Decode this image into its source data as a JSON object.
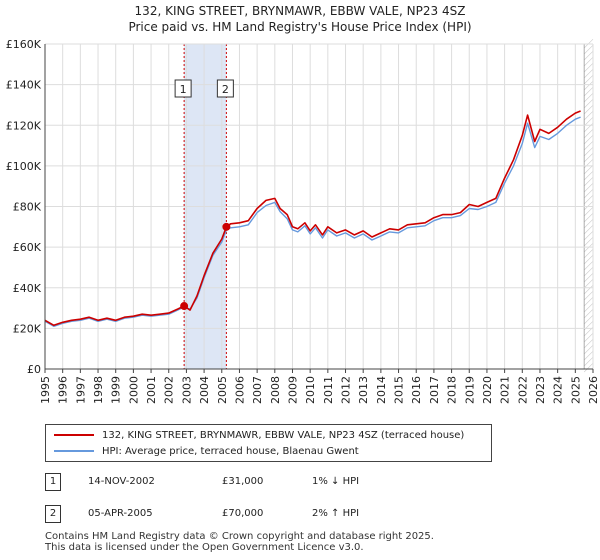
{
  "title_line1": "132, KING STREET, BRYNMAWR, EBBW VALE, NP23 4SZ",
  "title_line2": "Price paid vs. HM Land Registry's House Price Index (HPI)",
  "chart_data": {
    "type": "line",
    "y_tick_labels": [
      "£0",
      "£20K",
      "£40K",
      "£60K",
      "£80K",
      "£100K",
      "£120K",
      "£140K",
      "£160K"
    ],
    "y_tick_values": [
      0,
      20000,
      40000,
      60000,
      80000,
      100000,
      120000,
      140000,
      160000
    ],
    "ylim": [
      0,
      160000
    ],
    "xlim": [
      1995,
      2026
    ],
    "x_tick_labels": [
      "1995",
      "1996",
      "1997",
      "1998",
      "1999",
      "2000",
      "2001",
      "2002",
      "2003",
      "2004",
      "2005",
      "2006",
      "2007",
      "2008",
      "2009",
      "2010",
      "2011",
      "2012",
      "2013",
      "2014",
      "2015",
      "2016",
      "2017",
      "2018",
      "2019",
      "2020",
      "2021",
      "2022",
      "2023",
      "2024",
      "2025",
      "2026"
    ],
    "shaded_range": [
      2002.87,
      2005.26
    ],
    "forecast_start": 2025.5,
    "series": [
      {
        "name": "132, KING STREET, BRYNMAWR, EBBW VALE, NP23 4SZ (terraced house)",
        "color": "#cc0000",
        "x": [
          1995.0,
          1995.5,
          1996.0,
          1996.5,
          1997.0,
          1997.5,
          1998.0,
          1998.5,
          1999.0,
          1999.5,
          2000.0,
          2000.5,
          2001.0,
          2001.5,
          2002.0,
          2002.5,
          2002.87,
          2003.2,
          2003.6,
          2004.0,
          2004.5,
          2005.0,
          2005.26,
          2005.5,
          2006.0,
          2006.5,
          2007.0,
          2007.5,
          2008.0,
          2008.3,
          2008.7,
          2009.0,
          2009.3,
          2009.7,
          2010.0,
          2010.3,
          2010.7,
          2011.0,
          2011.5,
          2012.0,
          2012.5,
          2013.0,
          2013.5,
          2014.0,
          2014.5,
          2015.0,
          2015.5,
          2016.0,
          2016.5,
          2017.0,
          2017.5,
          2018.0,
          2018.5,
          2019.0,
          2019.5,
          2020.0,
          2020.5,
          2021.0,
          2021.5,
          2022.0,
          2022.3,
          2022.7,
          2023.0,
          2023.5,
          2024.0,
          2024.5,
          2025.0,
          2025.3
        ],
        "y": [
          24000,
          21500,
          23000,
          24000,
          24500,
          25500,
          24000,
          25000,
          24000,
          25500,
          26000,
          27000,
          26500,
          27000,
          27500,
          29500,
          31000,
          29000,
          36000,
          46000,
          57000,
          64000,
          70000,
          71500,
          72000,
          73000,
          79000,
          83000,
          84000,
          79000,
          76000,
          70000,
          69000,
          72000,
          68000,
          71000,
          66000,
          70000,
          67000,
          68500,
          66000,
          68000,
          65000,
          67000,
          69000,
          68500,
          71000,
          71500,
          72000,
          74500,
          76000,
          76000,
          77000,
          81000,
          80000,
          82000,
          84000,
          94000,
          103000,
          115000,
          125000,
          112000,
          118000,
          116000,
          119000,
          123000,
          126000,
          127000
        ]
      },
      {
        "name": "HPI: Average price, terraced house, Blaenau Gwent",
        "color": "#6699dd",
        "x": [
          1995.0,
          1995.5,
          1996.0,
          1996.5,
          1997.0,
          1997.5,
          1998.0,
          1998.5,
          1999.0,
          1999.5,
          2000.0,
          2000.5,
          2001.0,
          2001.5,
          2002.0,
          2002.5,
          2002.87,
          2003.2,
          2003.6,
          2004.0,
          2004.5,
          2005.0,
          2005.26,
          2005.5,
          2006.0,
          2006.5,
          2007.0,
          2007.5,
          2008.0,
          2008.3,
          2008.7,
          2009.0,
          2009.3,
          2009.7,
          2010.0,
          2010.3,
          2010.7,
          2011.0,
          2011.5,
          2012.0,
          2012.5,
          2013.0,
          2013.5,
          2014.0,
          2014.5,
          2015.0,
          2015.5,
          2016.0,
          2016.5,
          2017.0,
          2017.5,
          2018.0,
          2018.5,
          2019.0,
          2019.5,
          2020.0,
          2020.5,
          2021.0,
          2021.5,
          2022.0,
          2022.3,
          2022.7,
          2023.0,
          2023.5,
          2024.0,
          2024.5,
          2025.0,
          2025.3
        ],
        "y": [
          23500,
          21000,
          22500,
          23500,
          24000,
          25000,
          23500,
          24500,
          23500,
          25000,
          25500,
          26500,
          26000,
          26500,
          27000,
          29000,
          30500,
          29500,
          35000,
          45000,
          56000,
          62500,
          68500,
          69500,
          70000,
          71000,
          77000,
          80500,
          82000,
          77500,
          74000,
          68500,
          67500,
          70500,
          66500,
          69500,
          64500,
          68500,
          65500,
          67000,
          64500,
          66500,
          63500,
          65500,
          67500,
          67000,
          69500,
          70000,
          70500,
          73000,
          74500,
          74500,
          75500,
          79000,
          78500,
          80000,
          82000,
          91500,
          100000,
          111000,
          121000,
          109000,
          114500,
          113000,
          116000,
          120000,
          123000,
          124000
        ]
      }
    ],
    "transactions": [
      {
        "num": "1",
        "x": 2002.87,
        "y": 31000
      },
      {
        "num": "2",
        "x": 2005.26,
        "y": 70000
      }
    ]
  },
  "legend": {
    "series1_label": "132, KING STREET, BRYNMAWR, EBBW VALE, NP23 4SZ (terraced house)",
    "series2_label": "HPI: Average price, terraced house, Blaenau Gwent"
  },
  "transactions_table": [
    {
      "num": "1",
      "date": "14-NOV-2002",
      "price": "£31,000",
      "hpi": "1% ↓ HPI"
    },
    {
      "num": "2",
      "date": "05-APR-2005",
      "price": "£70,000",
      "hpi": "2% ↑ HPI"
    }
  ],
  "footer": {
    "line1": "Contains HM Land Registry data © Crown copyright and database right 2025.",
    "line2": "This data is licensed under the Open Government Licence v3.0."
  },
  "colors": {
    "price_line": "#cc0000",
    "hpi_line": "#6699dd",
    "shade": "#dde6f5",
    "grid": "#dddddd"
  }
}
